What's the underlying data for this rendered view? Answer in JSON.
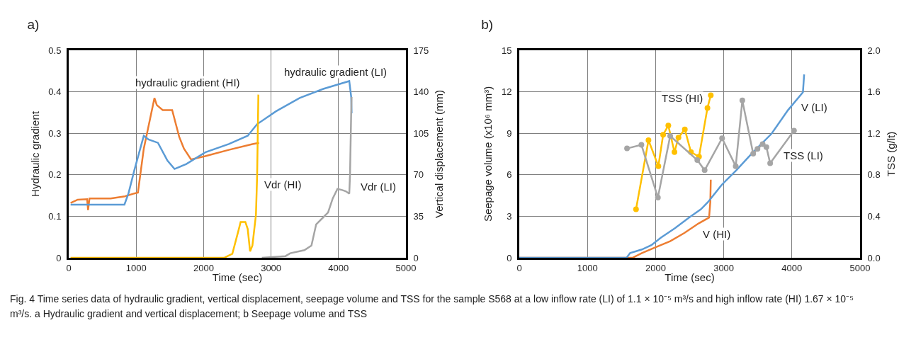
{
  "chart_data": [
    {
      "type": "line",
      "title": "a)",
      "xlabel": "Time (sec)",
      "ylabel": "Hydraulic gradient",
      "y2label": "Vertical displacement (mm)",
      "xlim": [
        0,
        5000
      ],
      "xticks": [
        0,
        1000,
        2000,
        3000,
        4000,
        5000
      ],
      "ylim": [
        0,
        0.5
      ],
      "yticks": [
        0,
        0.1,
        0.2,
        0.3,
        0.4,
        0.5
      ],
      "y2lim": [
        0,
        175
      ],
      "y2ticks": [
        0,
        35,
        70,
        105,
        140,
        175
      ],
      "grid": true,
      "legend": false,
      "line_style": "solid",
      "series": [
        {
          "name": "hydraulic gradient (HI)",
          "color": "#ed7d31",
          "marker": "none",
          "x": [
            28,
            133,
            273,
            287,
            308,
            623,
            833,
            973,
            1026,
            1113,
            1271,
            1306,
            1394,
            1534,
            1639,
            1709,
            1814,
            2024,
            2374,
            2724,
            2822
          ],
          "values": [
            0.132,
            0.14,
            0.141,
            0.115,
            0.143,
            0.143,
            0.148,
            0.155,
            0.157,
            0.263,
            0.385,
            0.368,
            0.356,
            0.356,
            0.291,
            0.263,
            0.237,
            0.245,
            0.26,
            0.274,
            0.277
          ]
        },
        {
          "name": "hydraulic gradient (LI)",
          "color": "#5b9bd5",
          "marker": "none",
          "x": [
            28,
            826,
            886,
            973,
            1113,
            1183,
            1323,
            1464,
            1569,
            1744,
            2024,
            2374,
            2654,
            2794,
            3074,
            3424,
            3775,
            4125,
            4160,
            4188,
            4195
          ],
          "values": [
            0.128,
            0.128,
            0.155,
            0.211,
            0.294,
            0.285,
            0.277,
            0.234,
            0.214,
            0.226,
            0.254,
            0.274,
            0.294,
            0.322,
            0.353,
            0.385,
            0.407,
            0.424,
            0.426,
            0.388,
            0.348
          ]
        },
        {
          "name": "Vdr (HI)",
          "color": "#ffc000",
          "marker": "none",
          "axis": "y2",
          "x": [
            28,
            2304,
            2426,
            2514,
            2549,
            2619,
            2654,
            2689,
            2724,
            2776,
            2794,
            2812
          ],
          "values": [
            0,
            0,
            3.4,
            22.3,
            30.2,
            30.2,
            24.3,
            5.4,
            10.3,
            36.2,
            70.0,
            137.6
          ]
        },
        {
          "name": "Vdr (LI)",
          "color": "#a5a5a5",
          "marker": "none",
          "axis": "y2",
          "x": [
            2864,
            3214,
            3284,
            3494,
            3599,
            3669,
            3775,
            3845,
            3915,
            3985,
            4055,
            4107,
            4160,
            4171,
            4188,
            4195
          ],
          "values": [
            0,
            1.4,
            3.8,
            6.4,
            10.3,
            28.2,
            34.2,
            38.2,
            50.1,
            58.1,
            57.1,
            56.1,
            54.1,
            70.0,
            121.7,
            135.6
          ]
        }
      ]
    },
    {
      "type": "line",
      "title": "b)",
      "xlabel": "Time (sec)",
      "ylabel": "Seepage volume (x10⁶ mm³)",
      "y2label": "TSS (g/lt)",
      "xlim": [
        0,
        5000
      ],
      "xticks": [
        0,
        1000,
        2000,
        3000,
        4000,
        5000
      ],
      "ylim": [
        0,
        15
      ],
      "yticks": [
        0,
        3,
        6,
        9,
        12,
        15
      ],
      "y2lim": [
        0,
        2.0
      ],
      "y2ticks": [
        {
          "value": 0,
          "label": "0.0"
        },
        {
          "value": 0.4,
          "label": "0.4"
        },
        {
          "value": 0.8,
          "label": "0.8"
        },
        {
          "value": 1.2,
          "label": "1.2"
        },
        {
          "value": 1.6,
          "label": "1.6"
        },
        {
          "value": 2.0,
          "label": "2.0"
        }
      ],
      "grid": true,
      "legend": false,
      "line_style": "solid",
      "annotations": [
        "Fig. 4 Time series data of hydraulic gradient, vertical displacement, seepage volume and TSS for the sample S568 at a low inflow rate (LI) of 1.1 × 10⁻⁵ m³/s and high inflow rate (HI) 1.67 × 10⁻⁵ m³/s. a Hydraulic gradient and vertical displacement; b Seepage volume and TSS"
      ],
      "series": [
        {
          "name": "V (HI)",
          "color": "#ed7d31",
          "marker": "none",
          "x": [
            0,
            1661,
            1799,
            2007,
            2214,
            2422,
            2630,
            2785,
            2803,
            2810
          ],
          "values": [
            0,
            0,
            0.34,
            0.77,
            1.2,
            1.79,
            2.48,
            2.91,
            4.02,
            5.64
          ]
        },
        {
          "name": "V (LI)",
          "color": "#5b9bd5",
          "marker": "none",
          "x": [
            0,
            1574,
            1626,
            1799,
            1938,
            2076,
            2284,
            2491,
            2664,
            2768,
            2976,
            3183,
            3425,
            3702,
            3944,
            4162,
            4180
          ],
          "values": [
            0,
            0,
            0.34,
            0.6,
            0.91,
            1.45,
            2.14,
            2.91,
            3.5,
            4.02,
            5.3,
            6.32,
            7.61,
            8.97,
            10.68,
            11.97,
            13.25
          ]
        },
        {
          "name": "TSS (HI)",
          "color": "#ffc000",
          "marker": "circle",
          "axis": "y2",
          "x": [
            1713,
            1896,
            2041,
            2111,
            2187,
            2277,
            2336,
            2429,
            2519,
            2637,
            2761,
            2810
          ],
          "values": [
            0.467,
            1.133,
            0.883,
            1.186,
            1.275,
            1.019,
            1.159,
            1.238,
            1.019,
            0.974,
            1.444,
            1.567
          ]
        },
        {
          "name": "TSS (LI)",
          "color": "#a5a5a5",
          "marker": "circle",
          "axis": "y2",
          "x": [
            1581,
            1792,
            2034,
            2214,
            2612,
            2720,
            2976,
            3176,
            3273,
            3432,
            3495,
            3571,
            3626,
            3681,
            4031
          ],
          "values": [
            1.054,
            1.088,
            0.581,
            1.174,
            0.942,
            0.844,
            1.152,
            0.883,
            1.517,
            1.003,
            1.049,
            1.095,
            1.067,
            0.912,
            1.225
          ]
        }
      ]
    }
  ]
}
